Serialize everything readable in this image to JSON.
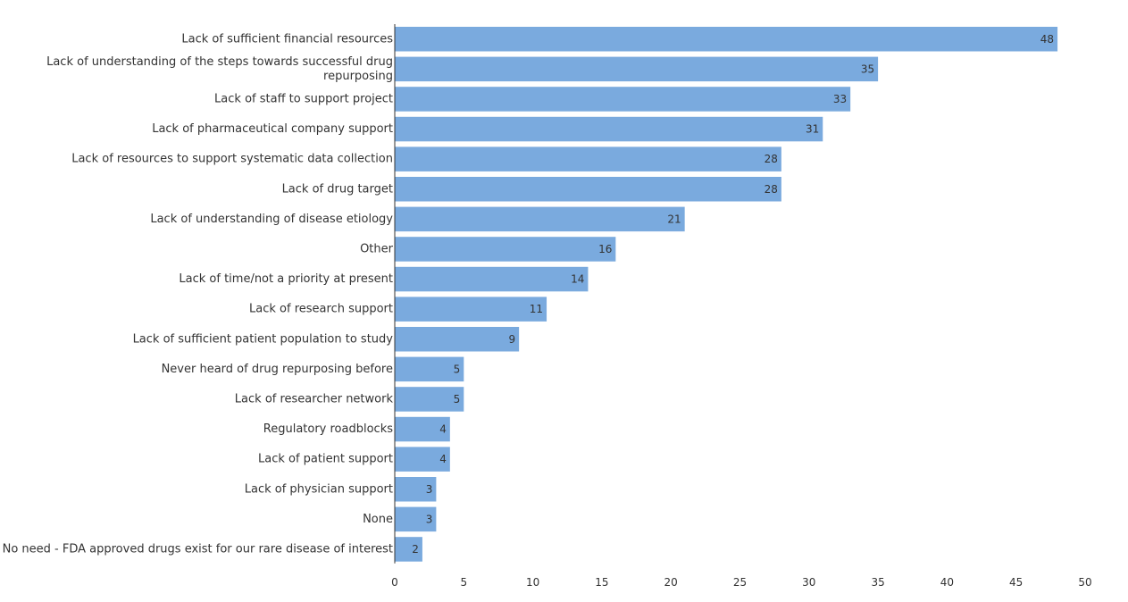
{
  "chart_data": {
    "type": "bar",
    "orientation": "horizontal",
    "title": "",
    "xlabel": "",
    "ylabel": "",
    "categories": [
      "Lack of sufficient financial resources",
      "Lack of understanding of the steps towards successful drug repurposing",
      "Lack of staff to support project",
      "Lack of pharmaceutical company support",
      "Lack of resources to support systematic data collection",
      "Lack of drug target",
      "Lack of understanding of disease etiology",
      "Other",
      "Lack of time/not a priority at present",
      "Lack of research support",
      "Lack of sufficient patient population to study",
      "Never heard of drug repurposing before",
      "Lack of researcher network",
      "Regulatory roadblocks",
      "Lack of patient support",
      "Lack of physician support",
      "None",
      "No need - FDA approved drugs exist for our rare disease of interest"
    ],
    "values": [
      48,
      35,
      33,
      31,
      28,
      28,
      21,
      16,
      14,
      11,
      9,
      5,
      5,
      4,
      4,
      3,
      3,
      2
    ],
    "xlim": [
      0,
      50
    ],
    "xticks": [
      0,
      5,
      10,
      15,
      20,
      25,
      30,
      35,
      40,
      45,
      50
    ],
    "grid": false,
    "legend": "none",
    "bar_color": "#7aaade",
    "axis_color": "#333333"
  }
}
